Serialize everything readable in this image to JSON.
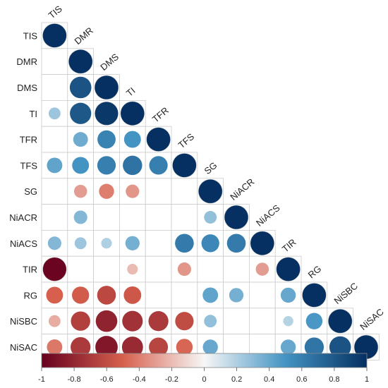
{
  "chart_data": {
    "type": "heatmap",
    "variables": [
      "TIS",
      "DMR",
      "DMS",
      "TI",
      "TFR",
      "TFS",
      "SG",
      "NiACR",
      "NiACS",
      "TIR",
      "RG",
      "NiSBC",
      "NiSAC"
    ],
    "matrix_shape": "lower-triangular",
    "mark": "circle",
    "values": [
      [
        1.0,
        null,
        null,
        null,
        null,
        null,
        null,
        null,
        null,
        null,
        null,
        null,
        null
      ],
      [
        null,
        1.0,
        null,
        null,
        null,
        null,
        null,
        null,
        null,
        null,
        null,
        null,
        null
      ],
      [
        null,
        0.82,
        1.0,
        null,
        null,
        null,
        null,
        null,
        null,
        null,
        null,
        null,
        null
      ],
      [
        0.25,
        0.8,
        0.96,
        1.0,
        null,
        null,
        null,
        null,
        null,
        null,
        null,
        null,
        null
      ],
      [
        null,
        0.38,
        0.58,
        0.5,
        1.0,
        null,
        null,
        null,
        null,
        null,
        null,
        null,
        null
      ],
      [
        0.42,
        0.5,
        0.6,
        0.66,
        0.6,
        1.0,
        null,
        null,
        null,
        null,
        null,
        null,
        null
      ],
      [
        null,
        -0.3,
        -0.4,
        -0.32,
        null,
        null,
        1.0,
        null,
        null,
        null,
        null,
        null,
        null
      ],
      [
        null,
        0.32,
        null,
        null,
        null,
        null,
        0.28,
        1.0,
        null,
        null,
        null,
        null,
        null
      ],
      [
        0.32,
        0.25,
        0.2,
        0.36,
        null,
        0.62,
        0.56,
        0.62,
        1.0,
        null,
        null,
        null,
        null
      ],
      [
        -0.98,
        null,
        null,
        -0.2,
        null,
        -0.32,
        null,
        null,
        -0.3,
        1.0,
        null,
        null,
        null
      ],
      [
        -0.5,
        -0.52,
        -0.62,
        -0.54,
        null,
        null,
        0.42,
        0.36,
        null,
        0.4,
        1.0,
        null,
        null
      ],
      [
        -0.25,
        -0.66,
        -0.82,
        -0.74,
        -0.7,
        -0.6,
        0.28,
        null,
        null,
        0.18,
        0.48,
        1.0,
        null
      ],
      [
        -0.42,
        -0.7,
        -0.88,
        -0.78,
        -0.64,
        -0.48,
        0.4,
        null,
        null,
        0.4,
        0.65,
        0.82,
        1.0
      ]
    ],
    "colorbar": {
      "range": [
        -1,
        1
      ],
      "ticks": [
        "-1",
        "-0.8",
        "-0.6",
        "-0.4",
        "-0.2",
        "0",
        "0.2",
        "0.4",
        "0.6",
        "0.8",
        "1"
      ],
      "placement": "bottom"
    },
    "colors": {
      "negative_strong": "#67001F",
      "negative_mid": "#D6604D",
      "neutral": "#F7F7F7",
      "positive_mid": "#4393C3",
      "positive_strong": "#053061",
      "grid": "#cccccc"
    }
  }
}
